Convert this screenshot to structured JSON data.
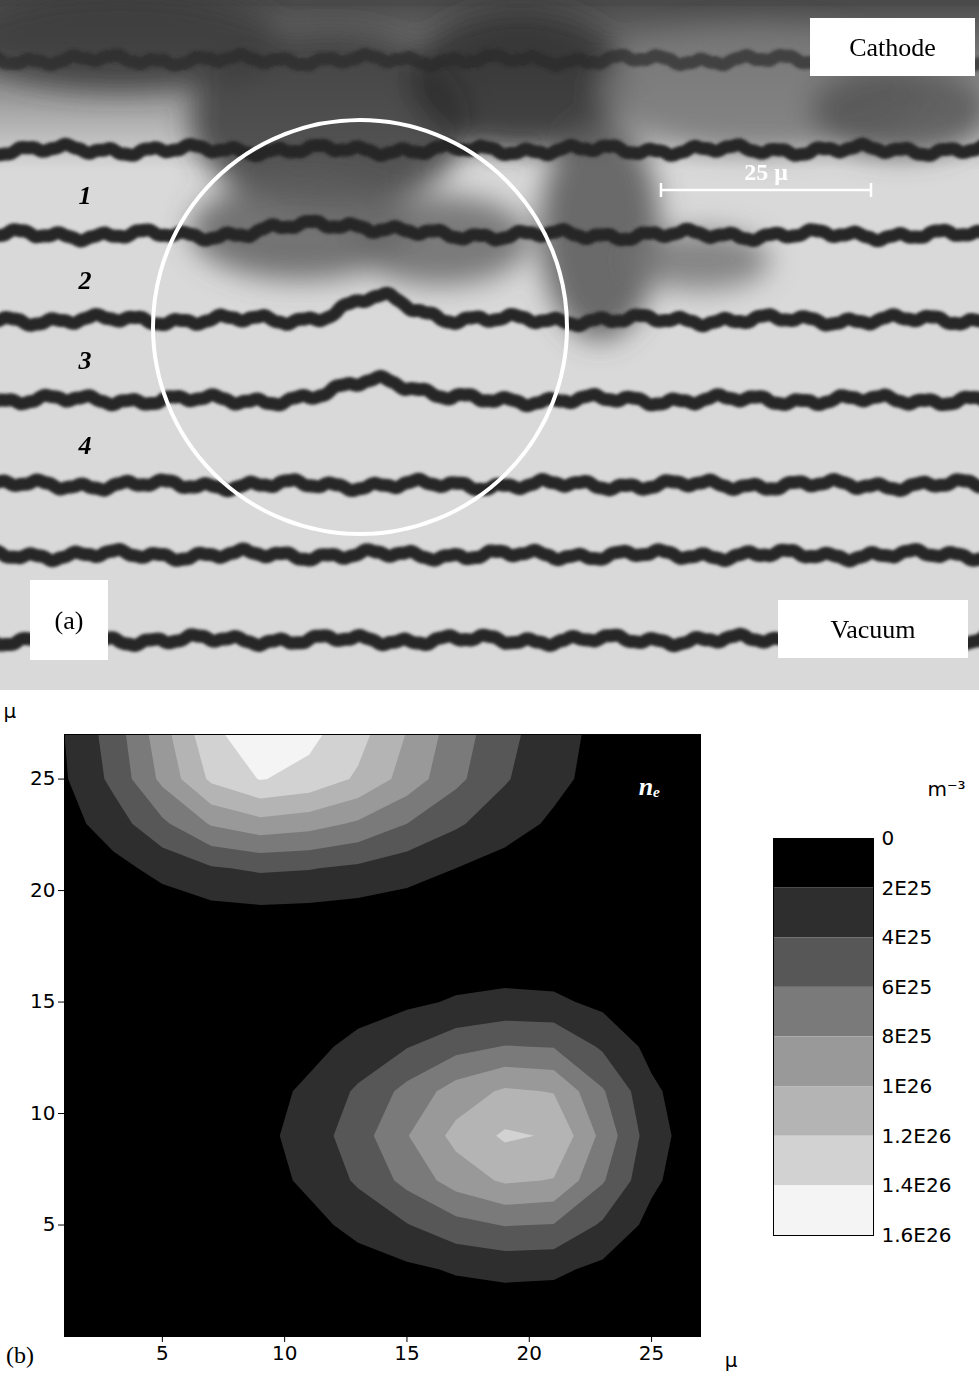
{
  "panel_a": {
    "label": "(a)",
    "cathode": "Cathode",
    "vacuum": "Vacuum",
    "fringe_labels": [
      "1",
      "2",
      "3",
      "4"
    ],
    "scale_bar": "25 μ"
  },
  "chart_data": {
    "type": "contour",
    "panel_label": "(b)",
    "title": "nₑ",
    "x_label": "μ",
    "y_label": "μ",
    "xlim": [
      1,
      27
    ],
    "ylim": [
      0,
      27
    ],
    "xticks": [
      5,
      10,
      15,
      20,
      25
    ],
    "yticks": [
      5,
      10,
      15,
      20,
      25
    ],
    "x": [
      1,
      3,
      5,
      7,
      9,
      11,
      13,
      15,
      17,
      19,
      21,
      23,
      25,
      27
    ],
    "y": [
      1,
      3,
      5,
      7,
      9,
      11,
      13,
      15,
      17,
      19,
      21,
      23,
      25,
      27
    ],
    "values": [
      [
        0,
        0,
        0,
        0,
        1e+24,
        1e+24,
        3e+24,
        5e+24,
        7e+24,
        8e+24,
        7e+24,
        5e+24,
        2e+24,
        0
      ],
      [
        0,
        0,
        0,
        1e+24,
        3e+24,
        6e+24,
        1.1e+25,
        1.6e+25,
        2.2e+25,
        2.5e+25,
        2.4e+25,
        1.5e+25,
        6e+24,
        1e+24
      ],
      [
        0,
        0,
        1e+24,
        3e+24,
        7e+24,
        1.4e+25,
        2.6e+25,
        3.9e+25,
        5.3e+25,
        6.1e+25,
        5.9e+25,
        3.7e+25,
        1.4e+25,
        3e+24
      ],
      [
        0,
        1e+24,
        2e+24,
        5e+24,
        1.2e+25,
        2.4e+25,
        4.3e+25,
        6.6e+25,
        8.9e+25,
        1.03e+26,
        9.9e+25,
        6.2e+25,
        2.4e+25,
        6e+24
      ],
      [
        0,
        1e+24,
        2e+24,
        6e+24,
        1.4e+25,
        2.9e+25,
        5.1e+25,
        7.9e+25,
        1.06e+26,
        1.23e+26,
        1.18e+26,
        7.4e+25,
        2.9e+25,
        7e+24
      ],
      [
        0,
        1e+24,
        2e+24,
        5e+24,
        1.2e+25,
        2.4e+25,
        4.3e+25,
        6.6e+25,
        8.9e+25,
        1.03e+26,
        9.9e+25,
        6.2e+25,
        2.4e+25,
        6e+24
      ],
      [
        0,
        0,
        1e+24,
        3e+24,
        7e+24,
        1.4e+25,
        2.6e+25,
        3.9e+25,
        5.3e+25,
        6.1e+25,
        5.9e+25,
        3.7e+25,
        1.4e+25,
        3e+24
      ],
      [
        0,
        0,
        0,
        1e+24,
        3e+24,
        6e+24,
        1.1e+25,
        1.6e+25,
        2.2e+25,
        2.5e+25,
        2.4e+25,
        1.5e+25,
        6e+24,
        1e+24
      ],
      [
        0,
        1e+24,
        2e+24,
        3e+24,
        5e+24,
        4e+24,
        6e+24,
        7e+24,
        9e+24,
        9e+24,
        7e+24,
        5e+24,
        2e+24,
        0
      ],
      [
        2e+24,
        5e+24,
        9e+24,
        1.3e+25,
        1.5e+25,
        1.4e+25,
        1.2e+25,
        1e+25,
        7e+24,
        4e+24,
        3e+24,
        1e+24,
        1e+24,
        0
      ],
      [
        6e+24,
        1.4e+25,
        2.6e+25,
        3.8e+25,
        4.3e+25,
        4.1e+25,
        3.6e+25,
        2.8e+25,
        2e+25,
        1.3e+25,
        8e+24,
        4e+24,
        2e+24,
        1e+24
      ],
      [
        1.2e+25,
        3e+25,
        5.6e+25,
        8.2e+25,
        9.3e+25,
        8.8e+25,
        7.7e+25,
        6e+25,
        4.3e+25,
        2.8e+25,
        1.7e+25,
        8e+24,
        4e+24,
        2e+24
      ],
      [
        1.8e+25,
        4.5e+25,
        8.5e+25,
        1.24e+26,
        1.41e+26,
        1.34e+26,
        1.17e+26,
        9.2e+25,
        6.5e+25,
        4.2e+25,
        2.5e+25,
        1.3e+25,
        6e+24,
        3e+24
      ],
      [
        2e+25,
        4.9e+25,
        9.2e+25,
        1.35e+26,
        1.53e+26,
        1.45e+26,
        1.27e+26,
        9.9e+25,
        7e+25,
        4.6e+25,
        2.8e+25,
        1.4e+25,
        7e+24,
        3e+24
      ]
    ],
    "colorbar": {
      "label": "m⁻³",
      "range": [
        0,
        1.6e+26
      ],
      "ticks": [
        0,
        {
          "value": 2e+25,
          "label": "2E25"
        },
        {
          "value": 4e+25,
          "label": "4E25"
        },
        {
          "value": 6e+25,
          "label": "6E25"
        },
        {
          "value": 8e+25,
          "label": "8E25"
        },
        {
          "value": 1e+26,
          "label": "1E26"
        },
        {
          "value": 1.2e+26,
          "label": "1.2E26"
        },
        {
          "value": 1.4e+26,
          "label": "1.4E26"
        },
        {
          "value": 1.6e+26,
          "label": "1.6E26"
        }
      ],
      "colors": [
        "#000000",
        "#2e2e2e",
        "#575757",
        "#7a7a7a",
        "#999999",
        "#b4b4b4",
        "#d2d2d2",
        "#f4f4f4"
      ]
    }
  }
}
